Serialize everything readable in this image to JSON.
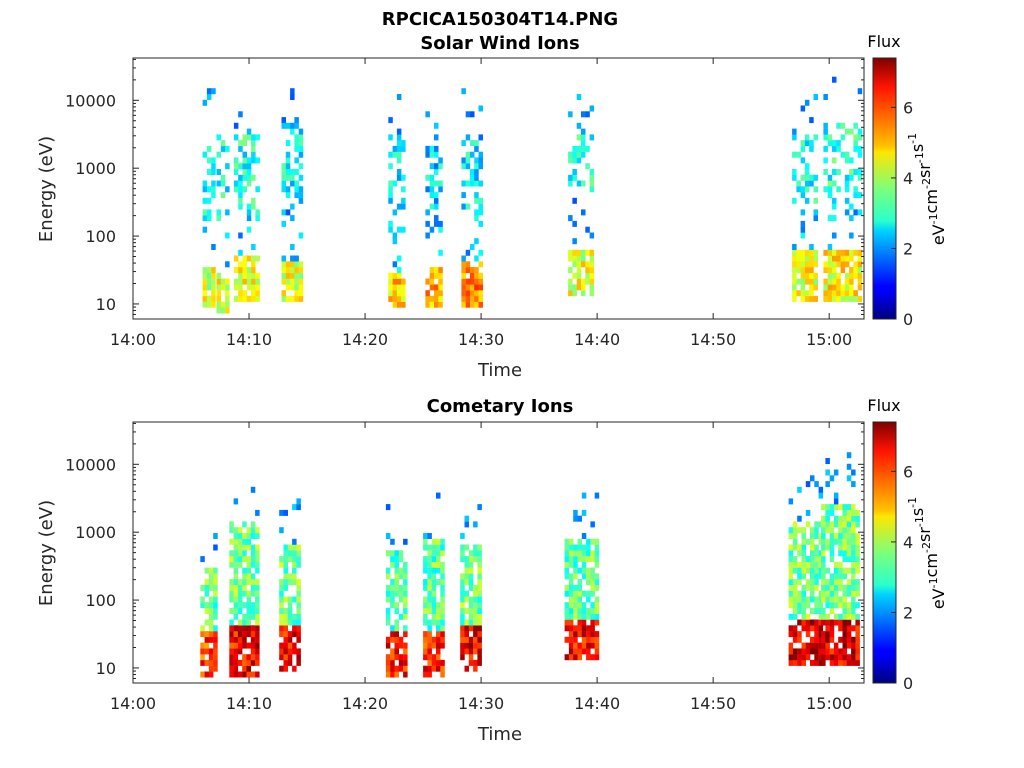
{
  "figure": {
    "title": "RPCICA150304T14.PNG"
  },
  "colorbar": {
    "title": "Flux",
    "label_html": [
      "eV",
      "-1",
      "cm",
      "-2",
      "sr",
      "-1",
      "s",
      "-1"
    ],
    "range": [
      0,
      7.4
    ],
    "ticks": [
      "0",
      "2",
      "4",
      "6"
    ],
    "colormap": "jet"
  },
  "chart_data": [
    {
      "type": "heatmap",
      "title": "Solar Wind Ions",
      "xlabel": "Time",
      "ylabel": "Energy (eV)",
      "x_tick_labels": [
        "14:00",
        "14:10",
        "14:20",
        "14:30",
        "14:40",
        "14:50",
        "15:00"
      ],
      "x_range_minutes": [
        0,
        63
      ],
      "y_scale": "log",
      "y_range": [
        6,
        42000
      ],
      "y_tick_labels": [
        "10",
        "100",
        "1000",
        "10000"
      ],
      "y_tick_values": [
        10,
        100,
        1000,
        10000
      ],
      "bursts": [
        {
          "t": [
            6.0,
            6.8
          ],
          "low_e": [
            8,
            30
          ],
          "low_flux": 4.3,
          "high_e": [
            150,
            2500
          ],
          "high_flux": 2.8
        },
        {
          "t": [
            7.2,
            8.0
          ],
          "low_e": [
            7,
            28
          ],
          "low_flux": 4.5,
          "high_e": [
            150,
            3000
          ],
          "high_flux": 2.9
        },
        {
          "t": [
            8.7,
            10.6
          ],
          "low_e": [
            10,
            50
          ],
          "low_flux": 4.6,
          "high_e": [
            200,
            3000
          ],
          "high_flux": 3.0
        },
        {
          "t": [
            12.8,
            14.3
          ],
          "low_e": [
            9,
            40
          ],
          "low_flux": 4.4,
          "high_e": [
            300,
            4000
          ],
          "high_flux": 2.8
        },
        {
          "t": [
            22.0,
            23.3
          ],
          "low_e": [
            8,
            28
          ],
          "low_flux": 5.0,
          "high_e": [
            100,
            3000
          ],
          "high_flux": 2.6
        },
        {
          "t": [
            25.2,
            26.6
          ],
          "low_e": [
            8,
            30
          ],
          "low_flux": 5.3,
          "high_e": [
            100,
            2000
          ],
          "high_flux": 2.5
        },
        {
          "t": [
            28.3,
            29.8
          ],
          "low_e": [
            8,
            35
          ],
          "low_flux": 5.5,
          "high_e": [
            150,
            2500
          ],
          "high_flux": 2.6
        },
        {
          "t": [
            37.5,
            39.6
          ],
          "low_e": [
            12,
            60
          ],
          "low_flux": 4.4,
          "high_e": [
            400,
            3000
          ],
          "high_flux": 3.1
        },
        {
          "t": [
            56.8,
            58.8
          ],
          "low_e": [
            10,
            60
          ],
          "low_flux": 4.5,
          "high_e": [
            300,
            3000
          ],
          "high_flux": 3.0
        },
        {
          "t": [
            59.5,
            62.6
          ],
          "low_e": [
            10,
            60
          ],
          "low_flux": 4.6,
          "high_e": [
            250,
            4000
          ],
          "high_flux": 3.0
        }
      ]
    },
    {
      "type": "heatmap",
      "title": "Cometary Ions",
      "xlabel": "Time",
      "ylabel": "Energy (eV)",
      "x_tick_labels": [
        "14:00",
        "14:10",
        "14:20",
        "14:30",
        "14:40",
        "14:50",
        "15:00"
      ],
      "x_range_minutes": [
        0,
        63
      ],
      "y_scale": "log",
      "y_range": [
        6,
        42000
      ],
      "y_tick_labels": [
        "10",
        "100",
        "1000",
        "10000"
      ],
      "y_tick_values": [
        10,
        100,
        1000,
        10000
      ],
      "bursts": [
        {
          "t": [
            5.8,
            7.2
          ],
          "core_e": [
            7,
            30
          ],
          "core_flux": 6.0,
          "halo_e": [
            30,
            300
          ],
          "halo_flux": 3.5
        },
        {
          "t": [
            8.3,
            10.8
          ],
          "core_e": [
            7,
            40
          ],
          "core_flux": 6.5,
          "halo_e": [
            40,
            1200
          ],
          "halo_flux": 3.6
        },
        {
          "t": [
            12.6,
            14.3
          ],
          "core_e": [
            8,
            35
          ],
          "core_flux": 6.4,
          "halo_e": [
            35,
            600
          ],
          "halo_flux": 3.6
        },
        {
          "t": [
            21.8,
            23.5
          ],
          "core_e": [
            7,
            30
          ],
          "core_flux": 6.3,
          "halo_e": [
            30,
            500
          ],
          "halo_flux": 3.4
        },
        {
          "t": [
            25.0,
            26.8
          ],
          "core_e": [
            7,
            30
          ],
          "core_flux": 6.2,
          "halo_e": [
            30,
            700
          ],
          "halo_flux": 3.5
        },
        {
          "t": [
            28.2,
            30.0
          ],
          "core_e": [
            8,
            35
          ],
          "core_flux": 6.6,
          "halo_e": [
            35,
            600
          ],
          "halo_flux": 3.6
        },
        {
          "t": [
            37.2,
            39.8
          ],
          "core_e": [
            12,
            45
          ],
          "core_flux": 6.5,
          "halo_e": [
            45,
            700
          ],
          "halo_flux": 3.5
        },
        {
          "t": [
            56.5,
            59.2
          ],
          "core_e": [
            10,
            50
          ],
          "core_flux": 6.8,
          "halo_e": [
            50,
            1200
          ],
          "halo_flux": 3.6
        },
        {
          "t": [
            59.3,
            62.5
          ],
          "core_e": [
            10,
            50
          ],
          "core_flux": 6.7,
          "halo_e": [
            50,
            2500
          ],
          "halo_flux": 3.6
        }
      ]
    }
  ]
}
